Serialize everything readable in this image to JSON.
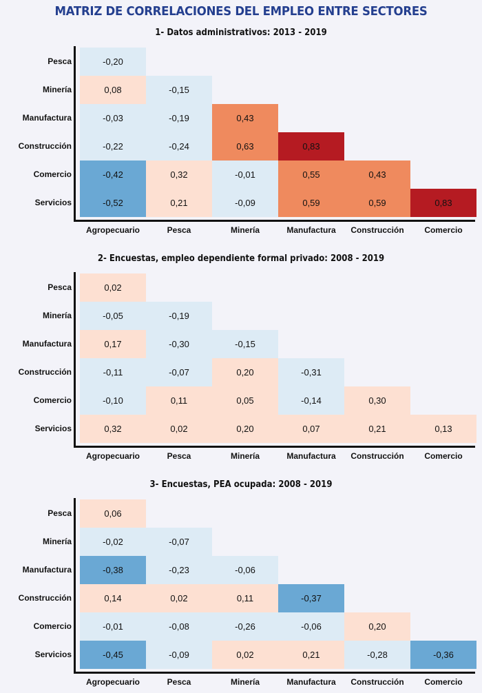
{
  "title": "MATRIZ DE CORRELACIONES DEL EMPLEO ENTRE SECTORES",
  "colors": {
    "strong_neg": "#6aa8d4",
    "weak_neg": "#ddebf5",
    "weak_pos": "#fde0d2",
    "mid_pos": "#ef8a5e",
    "strong_pos": "#b51b22",
    "title": "#243f8f"
  },
  "chart_data": [
    {
      "type": "heatmap",
      "title": "1- Datos administrativos: 2013 - 2019",
      "rows": [
        "Pesca",
        "Minería",
        "Manufactura",
        "Construcción",
        "Comercio",
        "Servicios"
      ],
      "cols": [
        "Agropecuario",
        "Pesca",
        "Minería",
        "Manufactura",
        "Construcción",
        "Comercio"
      ],
      "values": [
        [
          "-0,20"
        ],
        [
          "0,08",
          "-0,15"
        ],
        [
          "-0,03",
          "-0,19",
          "0,43"
        ],
        [
          "-0,22",
          "-0,24",
          "0,63",
          "0,83"
        ],
        [
          "-0,42",
          "0,32",
          "-0,01",
          "0,55",
          "0,43"
        ],
        [
          "-0,52",
          "0,21",
          "-0,09",
          "0,59",
          "0,59",
          "0,83"
        ]
      ]
    },
    {
      "type": "heatmap",
      "title": "2- Encuestas, empleo dependiente formal privado: 2008 - 2019",
      "rows": [
        "Pesca",
        "Minería",
        "Manufactura",
        "Construcción",
        "Comercio",
        "Servicios"
      ],
      "cols": [
        "Agropecuario",
        "Pesca",
        "Minería",
        "Manufactura",
        "Construcción",
        "Comercio"
      ],
      "values": [
        [
          "0,02"
        ],
        [
          "-0,05",
          "-0,19"
        ],
        [
          "0,17",
          "-0,30",
          "-0,15"
        ],
        [
          "-0,11",
          "-0,07",
          "0,20",
          "-0,31"
        ],
        [
          "-0,10",
          "0,11",
          "0,05",
          "-0,14",
          "0,30"
        ],
        [
          "0,32",
          "0,02",
          "0,20",
          "0,07",
          "0,21",
          "0,13"
        ]
      ]
    },
    {
      "type": "heatmap",
      "title": "3- Encuestas, PEA ocupada: 2008 - 2019",
      "rows": [
        "Pesca",
        "Minería",
        "Manufactura",
        "Construcción",
        "Comercio",
        "Servicios"
      ],
      "cols": [
        "Agropecuario",
        "Pesca",
        "Minería",
        "Manufactura",
        "Construcción",
        "Comercio"
      ],
      "values": [
        [
          "0,06"
        ],
        [
          "-0,02",
          "-0,07"
        ],
        [
          "-0,38",
          "-0,23",
          "-0,06"
        ],
        [
          "0,14",
          "0,02",
          "0,11",
          "-0,37"
        ],
        [
          "-0,01",
          "-0,08",
          "-0,26",
          "-0,06",
          "0,20"
        ],
        [
          "-0,45",
          "-0,09",
          "0,02",
          "0,21",
          "-0,28",
          "-0,36"
        ]
      ]
    }
  ]
}
